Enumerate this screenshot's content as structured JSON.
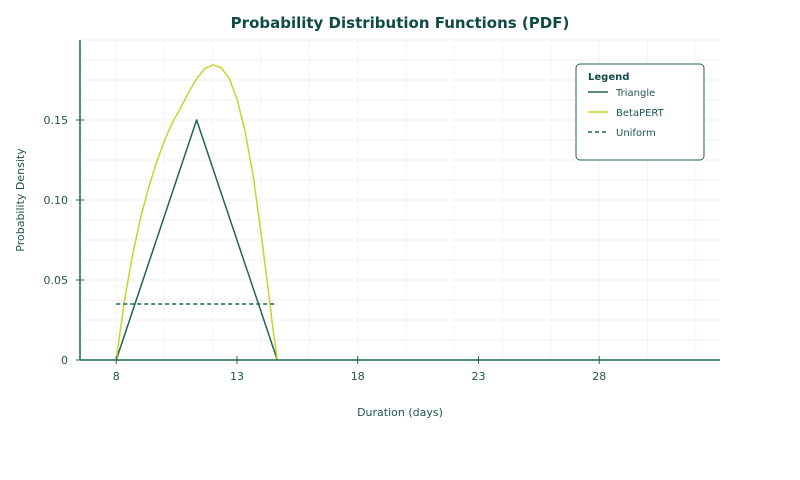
{
  "chart_data": {
    "type": "line",
    "title": "Probability Distribution Functions (PDF)",
    "xlabel": "Duration (days)",
    "ylabel": "Probability Density",
    "xlim": [
      6.5,
      33
    ],
    "ylim": [
      0,
      0.2
    ],
    "x_ticks": [
      8,
      13,
      18,
      23,
      28
    ],
    "y_ticks": [
      0,
      0.05,
      0.1,
      0.15
    ],
    "y_tick_labels": [
      "0",
      "0.05",
      "0.10",
      "0.15"
    ],
    "grid": true,
    "legend": {
      "title": "Legend",
      "position": "top-right"
    },
    "series": [
      {
        "name": "Triangle",
        "style": "solid",
        "color": "#1f6457",
        "x": [
          8,
          11.33,
          14.67
        ],
        "y": [
          0,
          0.15,
          0
        ]
      },
      {
        "name": "BetaPERT",
        "style": "solid",
        "color": "#c9d32a",
        "x": [
          8,
          8.33,
          8.67,
          9,
          9.33,
          9.67,
          10,
          10.33,
          10.67,
          11,
          11.33,
          11.67,
          12,
          12.33,
          12.67,
          13,
          13.33,
          13.67,
          14,
          14.33,
          14.5,
          14.67
        ],
        "y": [
          0,
          0.0361,
          0.0651,
          0.0884,
          0.1071,
          0.1237,
          0.1372,
          0.1485,
          0.1577,
          0.1673,
          0.1757,
          0.1823,
          0.1845,
          0.1829,
          0.1764,
          0.1632,
          0.1431,
          0.1152,
          0.0788,
          0.0397,
          0.0182,
          0
        ]
      },
      {
        "name": "Uniform",
        "style": "dashed",
        "color": "#1f6457",
        "x": [
          8,
          14.67
        ],
        "y": [
          0.035,
          0.035
        ]
      }
    ]
  }
}
